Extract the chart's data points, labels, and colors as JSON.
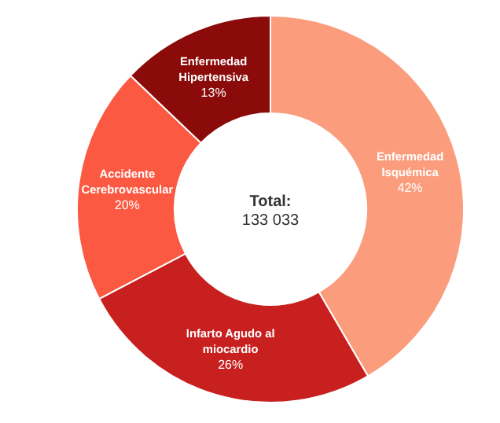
{
  "chart_data": {
    "type": "donut",
    "categories": [
      "Enfermedad\nIsquémica",
      "Infarto Agudo al\nmiocardio",
      "Accidente\nCerebrovascular",
      "Enfermedad\nHipertensiva"
    ],
    "values": [
      42,
      26,
      20,
      13
    ],
    "colors": [
      "#fb9d7d",
      "#c8201f",
      "#fb5942",
      "#8b0a0a"
    ],
    "value_labels": [
      "42%",
      "26%",
      "20%",
      "13%"
    ],
    "annotations": [
      "Total:",
      "133 033"
    ]
  }
}
